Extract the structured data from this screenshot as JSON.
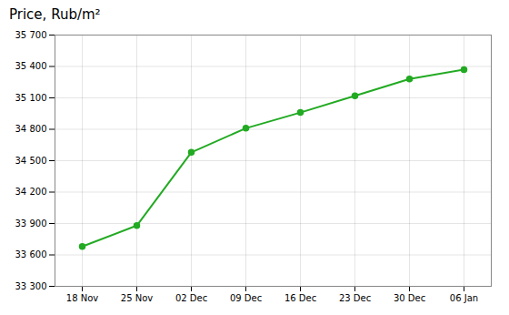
{
  "chart_data": {
    "type": "line",
    "title": "Price, Rub/m²",
    "categories": [
      "18 Nov",
      "25 Nov",
      "02 Dec",
      "09 Dec",
      "16 Dec",
      "23 Dec",
      "30 Dec",
      "06 Jan"
    ],
    "values": [
      33680,
      33880,
      34580,
      34810,
      34960,
      35120,
      35280,
      35370
    ],
    "color": "#22aa22",
    "marker": "circle",
    "ylim": [
      33300,
      35700
    ],
    "yticks": [
      {
        "value": 33300,
        "label": "33 300"
      },
      {
        "value": 33600,
        "label": "33 600"
      },
      {
        "value": 33900,
        "label": "33 900"
      },
      {
        "value": 34200,
        "label": "34 200"
      },
      {
        "value": 34500,
        "label": "34 500"
      },
      {
        "value": 34800,
        "label": "34 800"
      },
      {
        "value": 35100,
        "label": "35 100"
      },
      {
        "value": 35400,
        "label": "35 400"
      },
      {
        "value": 35700,
        "label": "35 700"
      }
    ],
    "grid": true
  }
}
